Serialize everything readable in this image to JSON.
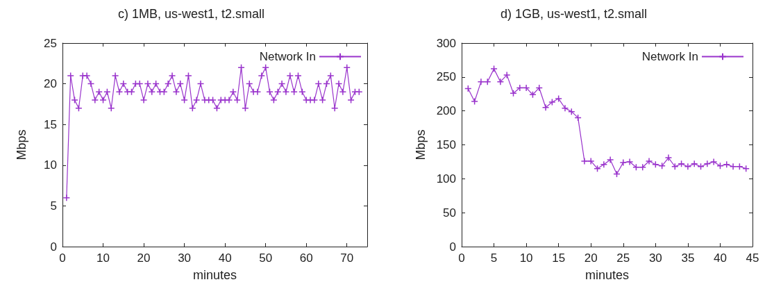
{
  "chart_data": [
    {
      "type": "line",
      "title": "c) 1MB, us-west1, t2.small",
      "xlabel": "minutes",
      "ylabel": "Mbps",
      "xlim": [
        0,
        75
      ],
      "xticks": [
        0,
        10,
        20,
        30,
        40,
        50,
        60,
        70
      ],
      "ylim": [
        0,
        25
      ],
      "yticks": [
        0,
        5,
        10,
        15,
        20,
        25
      ],
      "marker": "cross",
      "legend": "top right",
      "grid": false,
      "x": [
        1,
        2,
        3,
        4,
        5,
        6,
        7,
        8,
        9,
        10,
        11,
        12,
        13,
        14,
        15,
        16,
        17,
        18,
        19,
        20,
        21,
        22,
        23,
        24,
        25,
        26,
        27,
        28,
        29,
        30,
        31,
        32,
        33,
        34,
        35,
        36,
        37,
        38,
        39,
        40,
        41,
        42,
        43,
        44,
        45,
        46,
        47,
        48,
        49,
        50,
        51,
        52,
        53,
        54,
        55,
        56,
        57,
        58,
        59,
        60,
        61,
        62,
        63,
        64,
        65,
        66,
        67,
        68,
        69,
        70,
        71,
        72,
        73
      ],
      "series": [
        {
          "name": "Network In",
          "color": "#9933cc",
          "values": [
            6,
            21,
            18,
            17,
            21,
            21,
            20,
            18,
            19,
            18,
            19,
            17,
            21,
            19,
            20,
            19,
            19,
            20,
            20,
            18,
            20,
            19,
            20,
            19,
            19,
            20,
            21,
            19,
            20,
            18,
            21,
            17,
            18,
            20,
            18,
            18,
            18,
            17,
            18,
            18,
            18,
            19,
            18,
            22,
            17,
            20,
            19,
            19,
            21,
            22,
            19,
            18,
            19,
            20,
            19,
            21,
            19,
            21,
            19,
            18,
            18,
            18,
            20,
            18,
            20,
            21,
            17,
            20,
            19,
            22,
            18,
            19,
            19
          ]
        }
      ]
    },
    {
      "type": "line",
      "title": "d) 1GB, us-west1, t2.small",
      "xlabel": "minutes",
      "ylabel": "Mbps",
      "xlim": [
        0,
        45
      ],
      "xticks": [
        0,
        5,
        10,
        15,
        20,
        25,
        30,
        35,
        40,
        45
      ],
      "ylim": [
        0,
        300
      ],
      "yticks": [
        0,
        50,
        100,
        150,
        200,
        250,
        300
      ],
      "marker": "cross",
      "legend": "top right",
      "grid": false,
      "x": [
        1,
        2,
        3,
        4,
        5,
        6,
        7,
        8,
        9,
        10,
        11,
        12,
        13,
        14,
        15,
        16,
        17,
        18,
        19,
        20,
        21,
        22,
        23,
        24,
        25,
        26,
        27,
        28,
        29,
        30,
        31,
        32,
        33,
        34,
        35,
        36,
        37,
        38,
        39,
        40,
        41,
        42,
        43,
        44
      ],
      "series": [
        {
          "name": "Network In",
          "color": "#9933cc",
          "values": [
            233,
            214,
            243,
            243,
            262,
            243,
            253,
            226,
            234,
            234,
            224,
            234,
            205,
            213,
            218,
            204,
            199,
            190,
            126,
            126,
            115,
            121,
            128,
            107,
            124,
            125,
            117,
            117,
            126,
            121,
            119,
            131,
            118,
            122,
            118,
            122,
            118,
            122,
            125,
            119,
            121,
            118,
            118,
            115
          ]
        }
      ]
    }
  ]
}
